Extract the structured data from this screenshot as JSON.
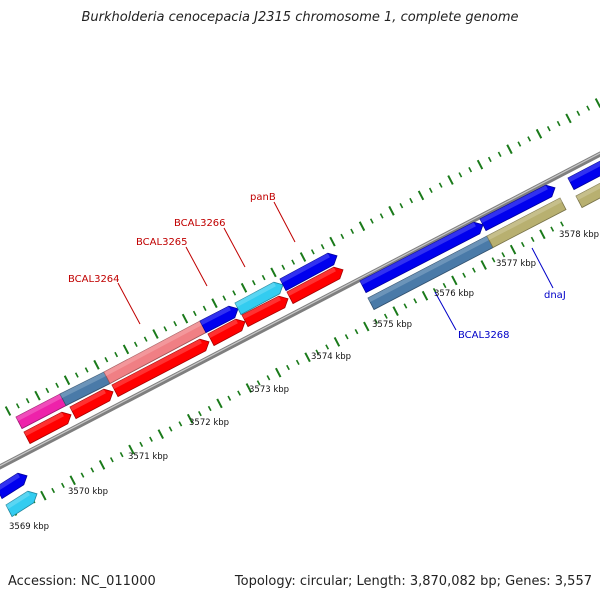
{
  "title": "Burkholderia cenocepacia J2315 chromosome 1, complete genome",
  "footer": {
    "accession": "Accession: NC_011000",
    "summary": "Topology: circular; Length: 3,870,082 bp; Genes: 3,557"
  },
  "colors": {
    "backbone": "#7f7f7f",
    "tick": "#1a7a1a",
    "forward_label": "#c00000",
    "reverse_label": "#0000c8",
    "cds_red": "#ff0000",
    "cds_blue": "#0000ee",
    "cds_cyan": "#33ccf0",
    "cds_pink": "#f07f84",
    "cds_steel": "#4a7aa8",
    "cds_magenta": "#ee22aa",
    "cds_khaki": "#b8b070"
  },
  "ruler": {
    "unit": "kbp",
    "labels": [
      "3569 kbp",
      "3570 kbp",
      "3571 kbp",
      "3572 kbp",
      "3573 kbp",
      "3574 kbp",
      "3575 kbp",
      "3576 kbp",
      "3577 kbp",
      "3578 kbp"
    ]
  },
  "gene_labels": [
    {
      "id": "bcal3264",
      "text": "BCAL3264",
      "strand": "forward"
    },
    {
      "id": "bcal3265",
      "text": "BCAL3265",
      "strand": "forward"
    },
    {
      "id": "bcal3266",
      "text": "BCAL3266",
      "strand": "forward"
    },
    {
      "id": "panb",
      "text": "panB",
      "strand": "forward"
    },
    {
      "id": "bcal3268",
      "text": "BCAL3268",
      "strand": "reverse"
    },
    {
      "id": "dnaj",
      "text": "dnaJ",
      "strand": "reverse"
    }
  ],
  "features": [
    {
      "name": "feature-blue-left",
      "color": "cds_blue",
      "strand": "outer"
    },
    {
      "name": "feature-cyan-left",
      "color": "cds_cyan",
      "strand": "inner"
    },
    {
      "name": "feature-magenta",
      "color": "cds_magenta",
      "strand": "outer"
    },
    {
      "name": "feature-steel",
      "color": "cds_steel",
      "strand": "outer"
    },
    {
      "name": "feature-pink-bcal3264",
      "color": "cds_pink",
      "strand": "outer"
    },
    {
      "name": "feature-blue-bcal3265",
      "color": "cds_blue",
      "strand": "outer"
    },
    {
      "name": "feature-cyan-bcal3266",
      "color": "cds_cyan",
      "strand": "outer"
    },
    {
      "name": "feature-blue-panb",
      "color": "cds_blue",
      "strand": "outer"
    },
    {
      "name": "feature-red-1",
      "color": "cds_red",
      "strand": "inner"
    },
    {
      "name": "feature-red-2",
      "color": "cds_red",
      "strand": "inner"
    },
    {
      "name": "feature-red-3",
      "color": "cds_red",
      "strand": "inner"
    },
    {
      "name": "feature-red-4",
      "color": "cds_red",
      "strand": "inner"
    },
    {
      "name": "feature-red-5",
      "color": "cds_red",
      "strand": "inner"
    },
    {
      "name": "feature-red-6",
      "color": "cds_red",
      "strand": "inner"
    },
    {
      "name": "feature-blue-right-1",
      "color": "cds_blue",
      "strand": "outer"
    },
    {
      "name": "feature-steel-bcal3268",
      "color": "cds_steel",
      "strand": "inner"
    },
    {
      "name": "feature-blue-right-2",
      "color": "cds_blue",
      "strand": "outer"
    },
    {
      "name": "feature-khaki-dnaj",
      "color": "cds_khaki",
      "strand": "inner"
    },
    {
      "name": "feature-blue-right-3",
      "color": "cds_blue",
      "strand": "outer"
    },
    {
      "name": "feature-khaki-right",
      "color": "cds_khaki",
      "strand": "inner"
    }
  ]
}
